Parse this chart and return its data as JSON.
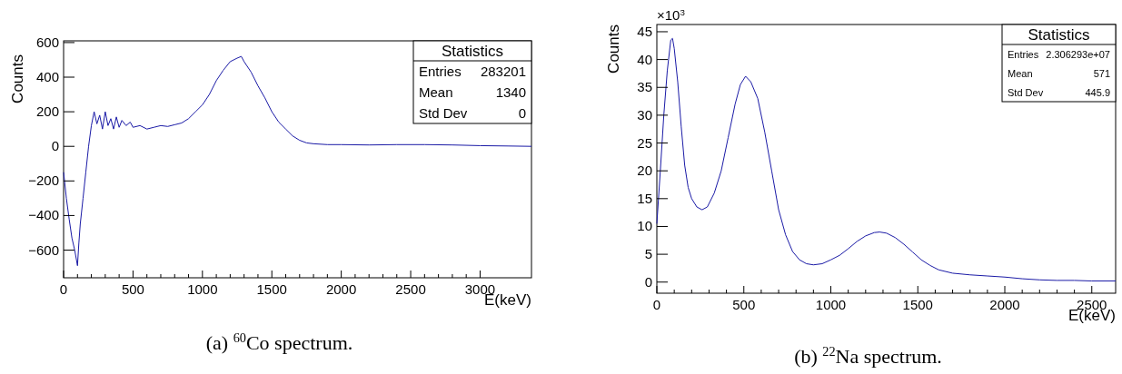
{
  "chart_data": [
    {
      "type": "line",
      "xlabel": "E(keV)",
      "ylabel": "Counts",
      "grid": false,
      "xlim": [
        0,
        3370
      ],
      "xticks": [
        0,
        500,
        1000,
        1500,
        2000,
        2500,
        3000
      ],
      "ylim": [
        -760,
        610
      ],
      "yticks": [
        {
          "value": -600,
          "label": "−600"
        },
        {
          "value": -400,
          "label": "−400"
        },
        {
          "value": -200,
          "label": "−200"
        },
        0,
        200,
        400,
        600
      ],
      "series": [
        {
          "color": "#1a1aa6",
          "x": [
            0,
            20,
            40,
            60,
            80,
            100,
            110,
            120,
            140,
            160,
            180,
            200,
            220,
            240,
            260,
            280,
            300,
            320,
            340,
            360,
            380,
            400,
            420,
            450,
            480,
            500,
            550,
            600,
            650,
            700,
            750,
            800,
            850,
            900,
            950,
            1000,
            1050,
            1100,
            1150,
            1200,
            1250,
            1280,
            1300,
            1350,
            1400,
            1450,
            1500,
            1550,
            1600,
            1650,
            1700,
            1750,
            1800,
            1900,
            2000,
            2200,
            2400,
            2600,
            2800,
            3000,
            3200,
            3370
          ],
          "values": [
            -150,
            -300,
            -420,
            -530,
            -600,
            -690,
            -560,
            -450,
            -300,
            -150,
            0,
            120,
            200,
            130,
            180,
            100,
            200,
            120,
            160,
            100,
            170,
            110,
            150,
            120,
            140,
            110,
            120,
            100,
            110,
            120,
            115,
            125,
            135,
            160,
            200,
            240,
            300,
            380,
            440,
            490,
            510,
            520,
            490,
            430,
            350,
            280,
            200,
            140,
            100,
            60,
            35,
            20,
            15,
            10,
            10,
            8,
            10,
            10,
            8,
            4,
            2,
            0
          ]
        }
      ],
      "annotations": [
        "Statistics",
        "Entries",
        "283201",
        "Mean",
        "1340",
        "Std Dev",
        "0",
        "(a) $^{60}$Co spectrum."
      ]
    },
    {
      "type": "line",
      "xlabel": "E(keV)",
      "ylabel": "Counts",
      "grid": false,
      "xlim": [
        0,
        2637
      ],
      "xticks": [
        0,
        500,
        1000,
        1500,
        2000,
        2500
      ],
      "ylim": [
        -2,
        46.3
      ],
      "yticks": [
        0,
        5,
        10,
        15,
        20,
        25,
        30,
        35,
        40,
        45
      ],
      "series": [
        {
          "color": "#1a1aa6",
          "x": [
            0,
            20,
            40,
            60,
            80,
            90,
            100,
            120,
            140,
            160,
            180,
            200,
            230,
            260,
            290,
            330,
            370,
            410,
            450,
            480,
            510,
            540,
            580,
            620,
            660,
            700,
            740,
            780,
            820,
            860,
            900,
            950,
            1000,
            1050,
            1100,
            1150,
            1200,
            1250,
            1280,
            1320,
            1370,
            1420,
            1470,
            1520,
            1570,
            1620,
            1700,
            1800,
            1900,
            2000,
            2100,
            2200,
            2300,
            2400,
            2500,
            2637
          ],
          "values": [
            10.5,
            20,
            30,
            38,
            43.5,
            43.8,
            42,
            36,
            28,
            21,
            17,
            15,
            13.5,
            13,
            13.5,
            16,
            20,
            26,
            32,
            35.5,
            37,
            36,
            33,
            27,
            20,
            13,
            8.5,
            5.5,
            4,
            3.3,
            3.1,
            3.3,
            4,
            4.8,
            6,
            7.3,
            8.3,
            8.9,
            9,
            8.8,
            8,
            6.8,
            5.4,
            4,
            3,
            2.2,
            1.6,
            1.3,
            1.1,
            0.9,
            0.6,
            0.4,
            0.3,
            0.3,
            0.2,
            0.2
          ]
        }
      ],
      "annotations": [
        "×10$^{3}$",
        "Statistics",
        "Entries",
        "2.306293e+07",
        "Mean",
        "571",
        "Std Dev",
        "445.9",
        "(b) $^{22}$Na spectrum."
      ]
    }
  ]
}
